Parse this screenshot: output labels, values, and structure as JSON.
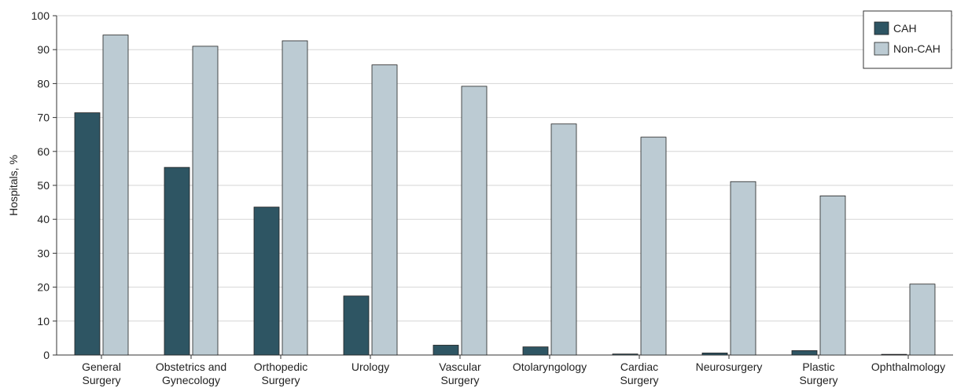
{
  "chart_data": {
    "type": "bar",
    "ylabel": "Hospitals, %",
    "xlabel": "",
    "title": "",
    "ylim": [
      0,
      100
    ],
    "yticks": [
      0,
      10,
      20,
      30,
      40,
      50,
      60,
      70,
      80,
      90,
      100
    ],
    "grid": "horizontal",
    "legend_position": "top-right",
    "categories": [
      [
        "General",
        "Surgery"
      ],
      [
        "Obstetrics and",
        "Gynecology"
      ],
      [
        "Orthopedic",
        "Surgery"
      ],
      [
        "Urology"
      ],
      [
        "Vascular",
        "Surgery"
      ],
      [
        "Otolaryngology"
      ],
      [
        "Cardiac",
        "Surgery"
      ],
      [
        "Neurosurgery"
      ],
      [
        "Plastic",
        "Surgery"
      ],
      [
        "Ophthalmology"
      ]
    ],
    "series": [
      {
        "name": "CAH",
        "color": "#2e5563",
        "values": [
          71.4,
          55.3,
          43.6,
          17.4,
          2.9,
          2.4,
          0.3,
          0.6,
          1.3,
          0.2
        ]
      },
      {
        "name": "Non-CAH",
        "color": "#bccbd3",
        "values": [
          94.3,
          91.0,
          92.6,
          85.5,
          79.2,
          68.1,
          64.2,
          51.1,
          46.9,
          20.9
        ]
      }
    ]
  }
}
